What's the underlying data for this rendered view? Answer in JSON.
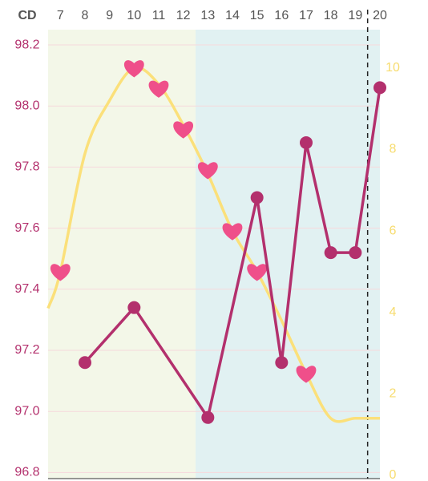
{
  "chart_data": {
    "type": "line",
    "x_label": "CD",
    "xlim": [
      6.5,
      20
    ],
    "xticks": [
      7,
      8,
      9,
      10,
      11,
      12,
      13,
      14,
      15,
      16,
      17,
      18,
      19,
      20
    ],
    "ylim": [
      96.78,
      98.25
    ],
    "yticks": [
      {
        "value": 96.8,
        "label": "96.8"
      },
      {
        "value": 97.0,
        "label": "97.0"
      },
      {
        "value": 97.2,
        "label": "97.2"
      },
      {
        "value": 97.4,
        "label": "97.4"
      },
      {
        "value": 97.6,
        "label": "97.6"
      },
      {
        "value": 97.8,
        "label": "97.8"
      },
      {
        "value": 98.0,
        "label": "98.0"
      },
      {
        "value": 98.2,
        "label": "98.2"
      }
    ],
    "y2lim": [
      -0.08,
      10.94
    ],
    "y2ticks": [
      0,
      2,
      4,
      6,
      8,
      10
    ],
    "grid": true,
    "bands": [
      {
        "from": 6.5,
        "to": 12.5,
        "color": "#f3f7e8"
      },
      {
        "from": 12.5,
        "to": 20,
        "color": "#e1f1f2"
      }
    ],
    "marker_x": 19.5,
    "series": [
      {
        "kind": "curve",
        "axis": "y2",
        "color": "#fbe07a",
        "x": [
          6.5,
          7,
          8,
          9,
          10,
          11,
          12,
          13,
          14,
          15,
          16,
          17,
          18,
          19,
          20
        ],
        "values": [
          4.1,
          5,
          7.9,
          9.2,
          10,
          9.6,
          8.6,
          7.4,
          6,
          5,
          3.8,
          2.5,
          1.4,
          1.4,
          1.4
        ]
      },
      {
        "kind": "hearts",
        "axis": "y2",
        "color": "#ef4f8a",
        "x": [
          7,
          10,
          11,
          12,
          13,
          14,
          15,
          17
        ],
        "values": [
          5,
          10,
          9.5,
          8.5,
          7.5,
          6,
          5,
          2.5
        ]
      },
      {
        "kind": "temperature",
        "color": "#b3306d",
        "x": [
          8,
          10,
          13,
          15,
          16,
          17,
          18,
          19,
          20
        ],
        "values": [
          97.16,
          97.34,
          96.98,
          97.7,
          97.16,
          97.88,
          97.52,
          97.52,
          98.06
        ]
      }
    ]
  }
}
